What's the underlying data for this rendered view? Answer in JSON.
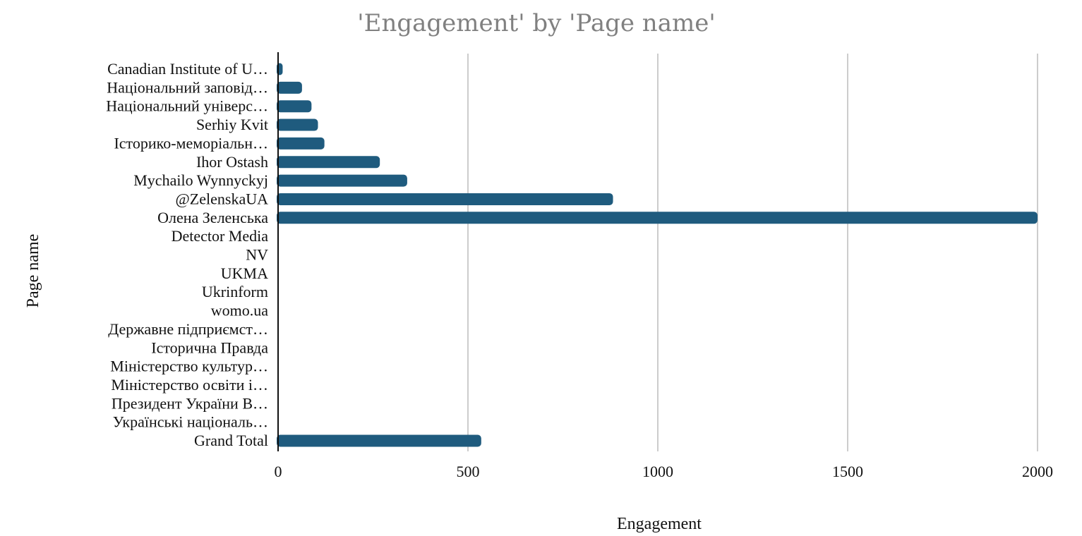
{
  "chart_data": {
    "type": "bar",
    "orientation": "horizontal",
    "title": "'Engagement' by 'Page name'",
    "xlabel": "Engagement",
    "ylabel": "Page name",
    "xlim": [
      0,
      2000
    ],
    "xticks": [
      0,
      500,
      1000,
      1500,
      2000
    ],
    "grid": true,
    "bar_color": "#1f5b7e",
    "categories": [
      "Canadian Institute of U…",
      "Національний заповід…",
      "Національний універс…",
      "Serhiy Kvit",
      "Історико-меморіальн…",
      "Ihor Ostash",
      "Mychailo Wynnyckyj",
      "@ZelenskaUA",
      "Олена Зеленська",
      "Detector Media",
      "NV",
      "UKMA",
      "Ukrinform",
      "womo.ua",
      "Державне підприємст…",
      "Історична Правда",
      "Міністерство культур…",
      "Міністерство освіти і…",
      "Президент України В…",
      "Українські національ…",
      "Grand Total"
    ],
    "values": [
      12,
      63,
      88,
      105,
      122,
      268,
      340,
      882,
      2000,
      0,
      0,
      0,
      0,
      0,
      0,
      0,
      0,
      0,
      0,
      0,
      535
    ]
  }
}
